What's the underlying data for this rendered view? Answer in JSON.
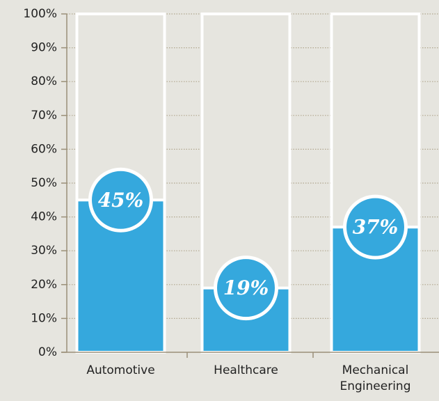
{
  "chart_data": {
    "type": "bar",
    "categories": [
      "Automotive",
      "Healthcare",
      "Mechanical Engineering"
    ],
    "values": [
      45,
      19,
      37
    ],
    "value_labels": [
      "45%",
      "19%",
      "37%"
    ],
    "color": "#35a8dd",
    "ylim": [
      0,
      100
    ],
    "yticks": [
      {
        "value": 0,
        "label": "0%"
      },
      {
        "value": 10,
        "label": "10%"
      },
      {
        "value": 20,
        "label": "20%"
      },
      {
        "value": 30,
        "label": "30%"
      },
      {
        "value": 40,
        "label": "40%"
      },
      {
        "value": 50,
        "label": "50%"
      },
      {
        "value": 60,
        "label": "60%"
      },
      {
        "value": 70,
        "label": "70%"
      },
      {
        "value": 80,
        "label": "80%"
      },
      {
        "value": 90,
        "label": "90%"
      },
      {
        "value": 100,
        "label": "100%"
      }
    ],
    "grid": true
  }
}
